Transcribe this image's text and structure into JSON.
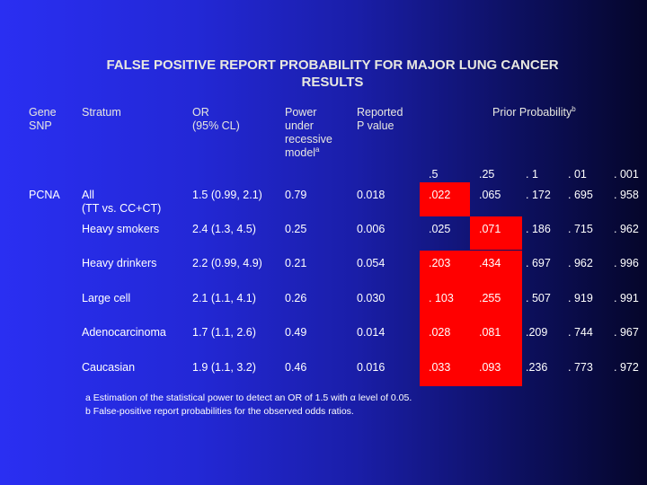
{
  "title_line1": "FALSE POSITIVE REPORT PROBABILITY FOR MAJOR LUNG CANCER",
  "title_line2": "RESULTS",
  "headers": {
    "gene_line1": "Gene",
    "gene_line2": "SNP",
    "stratum": "Stratum",
    "or_line1": "OR",
    "or_line2": "(95% CL)",
    "power_line1": "Power",
    "power_line2": "under",
    "power_line3": "recessive",
    "power_line4": "model",
    "power_sup": "a",
    "reported_line1": "Reported",
    "reported_line2": "P value",
    "prior": "Prior Probability",
    "prior_sup": "b",
    "priors": [
      ".5",
      ".25",
      ". 1",
      ". 01",
      ". 001"
    ]
  },
  "gene": "PCNA",
  "rows": [
    {
      "stratum1": "All",
      "stratum2": "(TT vs. CC+CT)",
      "or": "1.5 (0.99, 2.1)",
      "power": "0.79",
      "p": "0.018",
      "v": [
        ".022",
        ".065",
        ". 172",
        ". 695",
        ". 958"
      ]
    },
    {
      "stratum1": "Heavy smokers",
      "stratum2": "",
      "or": "2.4 (1.3, 4.5)",
      "power": "0.25",
      "p": "0.006",
      "v": [
        ".025",
        ".071",
        ". 186",
        ". 715",
        ". 962"
      ]
    },
    {
      "stratum1": "Heavy drinkers",
      "stratum2": "",
      "or": "2.2 (0.99, 4.9)",
      "power": "0.21",
      "p": "0.054",
      "v": [
        ".203",
        ".434",
        ". 697",
        ". 962",
        ". 996"
      ]
    },
    {
      "stratum1": "Large cell",
      "stratum2": "",
      "or": "2.1 (1.1, 4.1)",
      "power": "0.26",
      "p": "0.030",
      "v": [
        ". 103",
        ".255",
        ". 507",
        ". 919",
        ". 991"
      ]
    },
    {
      "stratum1": "Adenocarcinoma",
      "stratum2": "",
      "or": "1.7 (1.1, 2.6)",
      "power": "0.49",
      "p": "0.014",
      "v": [
        ".028",
        ".081",
        ".209",
        ". 744",
        ". 967"
      ]
    },
    {
      "stratum1": "Caucasian",
      "stratum2": "",
      "or": "1.9 (1.1, 3.2)",
      "power": "0.46",
      "p": "0.016",
      "v": [
        ".033",
        ".093",
        ".236",
        ". 773",
        ". 972"
      ]
    }
  ],
  "footnote_a_pre": "a Estimation of the statistical power to detect an OR of 1.5 with ",
  "footnote_a_symbol": "α",
  "footnote_a_post": " level of 0.05.",
  "footnote_b": "b False-positive report probabilities for the observed odds ratios.",
  "colors": {
    "highlight": "#ff0000",
    "background_left": "#2a2ff2",
    "background_right": "#05062a"
  }
}
